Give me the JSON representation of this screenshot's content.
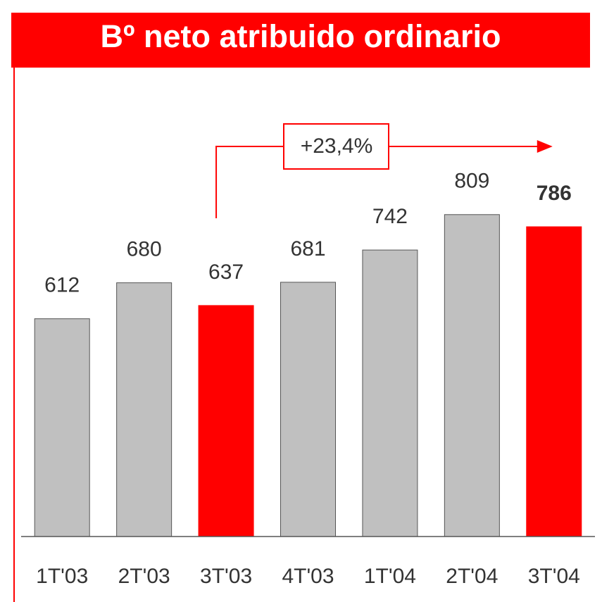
{
  "chart_data": {
    "type": "bar",
    "title": "Bº neto atribuido ordinario",
    "categories": [
      "1T'03",
      "2T'03",
      "3T'03",
      "4T'03",
      "1T'04",
      "2T'04",
      "3T'04"
    ],
    "values": [
      612,
      680,
      637,
      681,
      742,
      809,
      786
    ],
    "colors": [
      "#c0c0c0",
      "#c0c0c0",
      "#ff0000",
      "#c0c0c0",
      "#c0c0c0",
      "#c0c0c0",
      "#ff0000"
    ],
    "label_weights": [
      "normal",
      "normal",
      "normal",
      "normal",
      "normal",
      "normal",
      "bold"
    ],
    "ylim": [
      200,
      850
    ],
    "grid": false,
    "annotation": "+23,4%"
  }
}
